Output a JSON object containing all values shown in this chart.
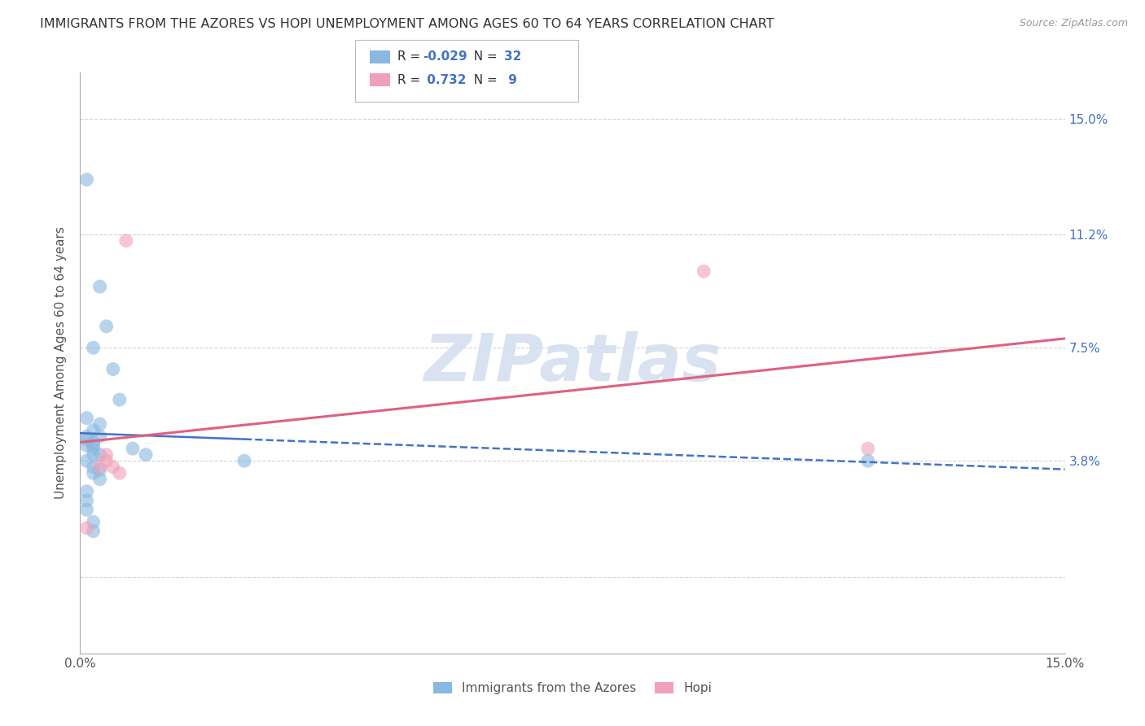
{
  "title": "IMMIGRANTS FROM THE AZORES VS HOPI UNEMPLOYMENT AMONG AGES 60 TO 64 YEARS CORRELATION CHART",
  "source": "Source: ZipAtlas.com",
  "ylabel": "Unemployment Among Ages 60 to 64 years",
  "xlim": [
    0.0,
    0.15
  ],
  "ylim": [
    -0.025,
    0.165
  ],
  "yticks": [
    0.0,
    0.038,
    0.075,
    0.112,
    0.15
  ],
  "ytick_labels": [
    "",
    "3.8%",
    "7.5%",
    "11.2%",
    "15.0%"
  ],
  "xticks": [
    0.0,
    0.05,
    0.1,
    0.15
  ],
  "xtick_labels": [
    "0.0%",
    "",
    "",
    "15.0%"
  ],
  "azores_points": [
    [
      0.001,
      0.13
    ],
    [
      0.003,
      0.095
    ],
    [
      0.004,
      0.082
    ],
    [
      0.002,
      0.075
    ],
    [
      0.005,
      0.068
    ],
    [
      0.006,
      0.058
    ],
    [
      0.001,
      0.052
    ],
    [
      0.002,
      0.048
    ],
    [
      0.003,
      0.05
    ],
    [
      0.003,
      0.046
    ],
    [
      0.001,
      0.046
    ],
    [
      0.001,
      0.045
    ],
    [
      0.002,
      0.044
    ],
    [
      0.002,
      0.043
    ],
    [
      0.001,
      0.043
    ],
    [
      0.002,
      0.042
    ],
    [
      0.002,
      0.04
    ],
    [
      0.003,
      0.04
    ],
    [
      0.001,
      0.038
    ],
    [
      0.002,
      0.036
    ],
    [
      0.003,
      0.035
    ],
    [
      0.002,
      0.034
    ],
    [
      0.003,
      0.032
    ],
    [
      0.001,
      0.028
    ],
    [
      0.001,
      0.025
    ],
    [
      0.001,
      0.022
    ],
    [
      0.002,
      0.018
    ],
    [
      0.002,
      0.015
    ],
    [
      0.008,
      0.042
    ],
    [
      0.01,
      0.04
    ],
    [
      0.025,
      0.038
    ],
    [
      0.12,
      0.038
    ]
  ],
  "hopi_points": [
    [
      0.001,
      0.016
    ],
    [
      0.003,
      0.036
    ],
    [
      0.004,
      0.038
    ],
    [
      0.004,
      0.04
    ],
    [
      0.005,
      0.036
    ],
    [
      0.006,
      0.034
    ],
    [
      0.007,
      0.11
    ],
    [
      0.095,
      0.1
    ],
    [
      0.12,
      0.042
    ]
  ],
  "azores_color": "#89B8E0",
  "hopi_color": "#F0A0B8",
  "azores_line_color": "#4472C4",
  "hopi_line_color": "#E06080",
  "background_color": "#FFFFFF",
  "grid_color": "#C8C8C8",
  "watermark": "ZIPatlas",
  "watermark_color": "#D5DFF0",
  "title_fontsize": 11.5,
  "axis_label_fontsize": 11,
  "tick_fontsize": 11,
  "legend_fontsize": 11
}
